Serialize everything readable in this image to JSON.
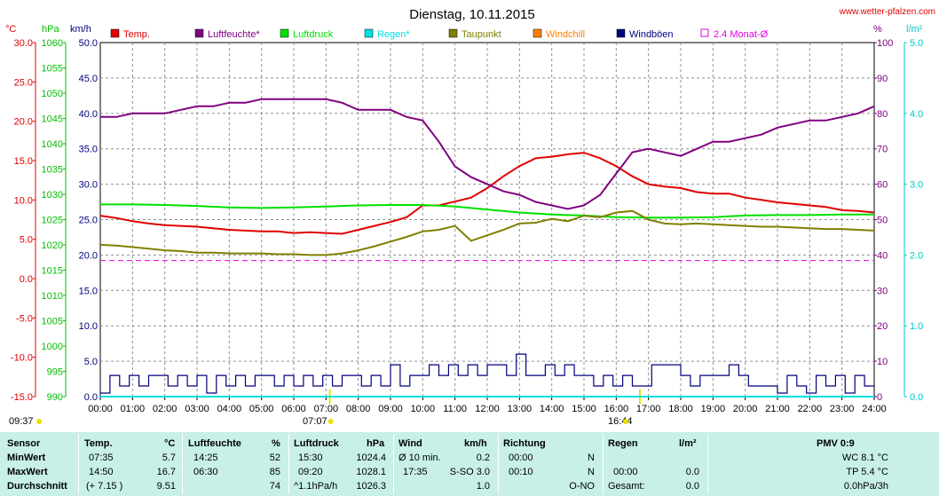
{
  "header": {
    "title": "Dienstag, 10.11.2015",
    "site": "www.wetter-pfalzen.com",
    "unit_celsius": "°C",
    "unit_hpa": "hPa",
    "unit_kmh": "km/h",
    "unit_percent": "%",
    "unit_lm2": "l/m²"
  },
  "legend": [
    {
      "label": "Temp.",
      "color": "#e00000"
    },
    {
      "label": "Luftfeuchte*",
      "color": "#800080"
    },
    {
      "label": "Luftdruck",
      "color": "#00e000"
    },
    {
      "label": "Regen*",
      "color": "#00e0e0"
    },
    {
      "label": "Taupunkt",
      "color": "#808000"
    },
    {
      "label": "Windchill",
      "color": "#ff8000"
    },
    {
      "label": "Windböen",
      "color": "#000080"
    },
    {
      "label": "2.4 Monat-Ø",
      "color": "#e000e0",
      "dashed": true
    }
  ],
  "axes": {
    "celsius_ticks": [
      "30.0",
      "25.0",
      "20.0",
      "15.0",
      "10.0",
      "5.0",
      "0.0",
      "-5.0",
      "-10.0",
      "-15.0"
    ],
    "hpa_ticks": [
      "1060",
      "1055",
      "1050",
      "1045",
      "1040",
      "1035",
      "1030",
      "1025",
      "1020",
      "1015",
      "1010",
      "1005",
      "1000",
      "995",
      "990"
    ],
    "kmh_ticks": [
      "50.0",
      "45.0",
      "40.0",
      "35.0",
      "30.0",
      "25.0",
      "20.0",
      "15.0",
      "10.0",
      "5.0",
      "0.0"
    ],
    "percent_ticks": [
      "100",
      "90",
      "80",
      "70",
      "60",
      "50",
      "40",
      "30",
      "20",
      "10",
      "0"
    ],
    "rain_ticks": [
      "5.0",
      "4.0",
      "3.0",
      "2.0",
      "1.0",
      "0.0"
    ],
    "time_ticks": [
      "00:00",
      "01:00",
      "02:00",
      "03:00",
      "04:00",
      "05:00",
      "06:00",
      "07:00",
      "08:00",
      "09:00",
      "10:00",
      "11:00",
      "12:00",
      "13:00",
      "14:00",
      "15:00",
      "16:00",
      "17:00",
      "18:00",
      "19:00",
      "20:00",
      "21:00",
      "22:00",
      "23:00",
      "24:00"
    ],
    "markers": {
      "sunrise_left": "09:37",
      "sunrise": "07:07",
      "sunset": "16:44"
    }
  },
  "chart_data": {
    "type": "line",
    "title": "Dienstag, 10.11.2015",
    "x_unit": "hours",
    "x_range": [
      0,
      24
    ],
    "y_ranges": {
      "temperature_c": [
        -15,
        30
      ],
      "pressure_hpa": [
        990,
        1060
      ],
      "wind_kmh": [
        0,
        50
      ],
      "humidity_pct": [
        0,
        100
      ],
      "rain_lm2": [
        0,
        5
      ]
    },
    "grid": true,
    "series": [
      {
        "name": "Temp.",
        "axis": "temperature_c",
        "color": "#e00000",
        "x": [
          0,
          0.5,
          1,
          1.5,
          2,
          2.5,
          3,
          3.5,
          4,
          4.5,
          5,
          5.5,
          6,
          6.5,
          7,
          7.5,
          8,
          8.5,
          9,
          9.5,
          10,
          10.5,
          11,
          11.5,
          12,
          12.5,
          13,
          13.5,
          14,
          14.5,
          15,
          15.5,
          16,
          16.5,
          17,
          17.5,
          18,
          18.5,
          19,
          19.5,
          20,
          20.5,
          21,
          21.5,
          22,
          22.5,
          23,
          23.5,
          24
        ],
        "y": [
          8.0,
          7.7,
          7.3,
          7.0,
          6.8,
          6.7,
          6.6,
          6.4,
          6.2,
          6.1,
          6.0,
          6.0,
          5.8,
          5.9,
          5.8,
          5.7,
          6.2,
          6.7,
          7.2,
          7.8,
          9.3,
          9.3,
          9.8,
          10.3,
          11.5,
          13.0,
          14.3,
          15.3,
          15.5,
          15.8,
          16.0,
          15.3,
          14.3,
          13.0,
          12.0,
          11.7,
          11.5,
          11.0,
          10.8,
          10.8,
          10.3,
          10.0,
          9.7,
          9.5,
          9.3,
          9.1,
          8.7,
          8.6,
          8.4
        ]
      },
      {
        "name": "Luftfeuchte*",
        "axis": "humidity_pct",
        "color": "#800080",
        "x": [
          0,
          0.5,
          1,
          1.5,
          2,
          2.5,
          3,
          3.5,
          4,
          4.5,
          5,
          5.5,
          6,
          6.5,
          7,
          7.5,
          8,
          8.5,
          9,
          9.5,
          10,
          10.5,
          11,
          11.5,
          12,
          12.5,
          13,
          13.5,
          14,
          14.5,
          15,
          15.5,
          16,
          16.5,
          17,
          17.5,
          18,
          18.5,
          19,
          19.5,
          20,
          20.5,
          21,
          21.5,
          22,
          22.5,
          23,
          23.5,
          24
        ],
        "y": [
          79,
          79,
          80,
          80,
          80,
          81,
          82,
          82,
          83,
          83,
          84,
          84,
          84,
          84,
          84,
          83,
          81,
          81,
          81,
          79,
          78,
          72,
          65,
          62,
          60,
          58,
          57,
          55,
          54,
          53,
          54,
          57,
          63,
          69,
          70,
          69,
          68,
          70,
          72,
          72,
          73,
          74,
          76,
          77,
          78,
          78,
          79,
          80,
          82
        ]
      },
      {
        "name": "Luftdruck",
        "axis": "pressure_hpa",
        "color": "#00e000",
        "x": [
          0,
          1,
          2,
          3,
          4,
          5,
          6,
          7,
          8,
          9,
          10,
          11,
          12,
          13,
          14,
          15,
          16,
          17,
          18,
          19,
          20,
          21,
          22,
          23,
          24
        ],
        "y": [
          1028.0,
          1028.0,
          1027.9,
          1027.7,
          1027.4,
          1027.3,
          1027.4,
          1027.6,
          1027.8,
          1027.9,
          1027.9,
          1027.6,
          1027.0,
          1026.4,
          1026.0,
          1025.8,
          1025.5,
          1025.4,
          1025.4,
          1025.5,
          1025.8,
          1025.9,
          1025.9,
          1026.0,
          1026.0
        ]
      },
      {
        "name": "Regen*",
        "axis": "rain_lm2",
        "color": "#00e0e0",
        "x": [
          0,
          24
        ],
        "y": [
          0,
          0
        ]
      },
      {
        "name": "Taupunkt",
        "axis": "temperature_c",
        "color": "#808000",
        "x": [
          0,
          0.5,
          1,
          1.5,
          2,
          2.5,
          3,
          3.5,
          4,
          4.5,
          5,
          5.5,
          6,
          6.5,
          7,
          7.5,
          8,
          8.5,
          9,
          9.5,
          10,
          10.5,
          11,
          11.5,
          12,
          12.5,
          13,
          13.5,
          14,
          14.5,
          15,
          15.5,
          16,
          16.5,
          17,
          17.5,
          18,
          18.5,
          19,
          19.5,
          20,
          20.5,
          21,
          21.5,
          22,
          22.5,
          23,
          23.5,
          24
        ],
        "y": [
          4.3,
          4.2,
          4.0,
          3.8,
          3.6,
          3.5,
          3.3,
          3.3,
          3.2,
          3.2,
          3.2,
          3.1,
          3.1,
          3.0,
          3.0,
          3.2,
          3.6,
          4.1,
          4.7,
          5.3,
          6.0,
          6.2,
          6.7,
          4.8,
          5.5,
          6.2,
          7.0,
          7.1,
          7.6,
          7.3,
          8.0,
          7.8,
          8.4,
          8.6,
          7.5,
          7.0,
          6.9,
          7.0,
          6.9,
          6.8,
          6.7,
          6.6,
          6.6,
          6.5,
          6.4,
          6.3,
          6.3,
          6.2,
          6.1
        ]
      },
      {
        "name": "Windböen",
        "axis": "wind_kmh",
        "color": "#000080",
        "x": [
          0,
          0.3,
          0.6,
          0.9,
          1.2,
          1.5,
          1.8,
          2.1,
          2.4,
          2.7,
          3.0,
          3.3,
          3.6,
          3.9,
          4.2,
          4.5,
          4.8,
          5.1,
          5.4,
          5.7,
          6.0,
          6.3,
          6.6,
          6.9,
          7.2,
          7.5,
          7.8,
          8.1,
          8.4,
          8.7,
          9.0,
          9.3,
          9.6,
          9.9,
          10.2,
          10.5,
          10.8,
          11.1,
          11.4,
          11.7,
          12.0,
          12.3,
          12.6,
          12.9,
          13.2,
          13.5,
          13.8,
          14.1,
          14.4,
          14.7,
          15.0,
          15.3,
          15.6,
          15.9,
          16.2,
          16.5,
          16.8,
          17.1,
          17.4,
          17.7,
          18.0,
          18.3,
          18.6,
          18.9,
          19.2,
          19.5,
          19.8,
          20.1,
          20.4,
          20.7,
          21.0,
          21.3,
          21.6,
          21.9,
          22.2,
          22.5,
          22.8,
          23.1,
          23.4,
          23.7,
          24.0
        ],
        "y": [
          0.5,
          3.0,
          1.5,
          3.0,
          1.5,
          3.0,
          3.0,
          1.5,
          3.0,
          1.5,
          3.0,
          0.5,
          3.0,
          1.5,
          3.0,
          1.5,
          3.0,
          3.0,
          1.5,
          3.0,
          1.5,
          3.0,
          1.5,
          3.0,
          1.5,
          3.0,
          3.0,
          1.5,
          3.0,
          1.5,
          4.5,
          1.5,
          3.0,
          3.0,
          4.5,
          3.0,
          4.5,
          3.0,
          4.5,
          3.0,
          4.5,
          4.5,
          3.0,
          6.0,
          3.0,
          3.0,
          4.5,
          3.0,
          4.5,
          3.0,
          3.0,
          1.5,
          3.0,
          1.5,
          3.0,
          1.5,
          1.5,
          4.5,
          4.5,
          4.5,
          3.0,
          1.5,
          3.0,
          3.0,
          3.0,
          4.5,
          3.0,
          1.5,
          1.5,
          1.5,
          0.5,
          3.0,
          1.5,
          0.5,
          3.0,
          1.5,
          3.0,
          0.5,
          3.0,
          1.5,
          1.5
        ]
      },
      {
        "name": "2.4 Monat-Ø",
        "axis": "temperature_c",
        "color": "#e000e0",
        "dashed": true,
        "x": [
          0,
          24
        ],
        "y": [
          2.3,
          2.3
        ]
      }
    ]
  },
  "stats": {
    "headers": {
      "sensor": "Sensor",
      "temp": "Temp.",
      "temp_unit": "°C",
      "hum": "Luftfeuchte",
      "hum_unit": "%",
      "press": "Luftdruck",
      "press_unit": "hPa",
      "wind": "Wind",
      "wind_unit": "km/h",
      "dir": "Richtung",
      "rain": "Regen",
      "rain_unit": "l/m²",
      "pmv": "PMV 0:9"
    },
    "rows": [
      {
        "label": "MinWert",
        "t_time": "07:35",
        "t_val": "5.7",
        "h_time": "14:25",
        "h_val": "52",
        "p_time": "15:30",
        "p_val": "1024.4",
        "w_time": "Ø 10 min.",
        "w_val": "0.2",
        "d_time": "00:00",
        "d_val": "N",
        "r_time": "",
        "r_val": "",
        "pmv": "WC 8.1 °C"
      },
      {
        "label": "MaxWert",
        "t_time": "14:50",
        "t_val": "16.7",
        "h_time": "06:30",
        "h_val": "85",
        "p_time": "09:20",
        "p_val": "1028.1",
        "w_time": "17:35",
        "w_mid": "S-SO 3.0",
        "w_val": "",
        "d_time": "00:10",
        "d_val": "N",
        "r_time": "00:00",
        "r_val": "0.0",
        "pmv": "TP 5.4 °C"
      },
      {
        "label": "Durchschnitt",
        "t_time": "(+ 7.15 )",
        "t_val": "9.51",
        "h_time": "",
        "h_val": "74",
        "p_time": "^1.1hPa/h",
        "p_val": "1026.3",
        "w_time": "",
        "w_val": "1.0",
        "d_time": "",
        "d_val": "O-NO",
        "r_time": "Gesamt:",
        "r_val": "0.0",
        "pmv": "0.0hPa/3h"
      }
    ]
  }
}
